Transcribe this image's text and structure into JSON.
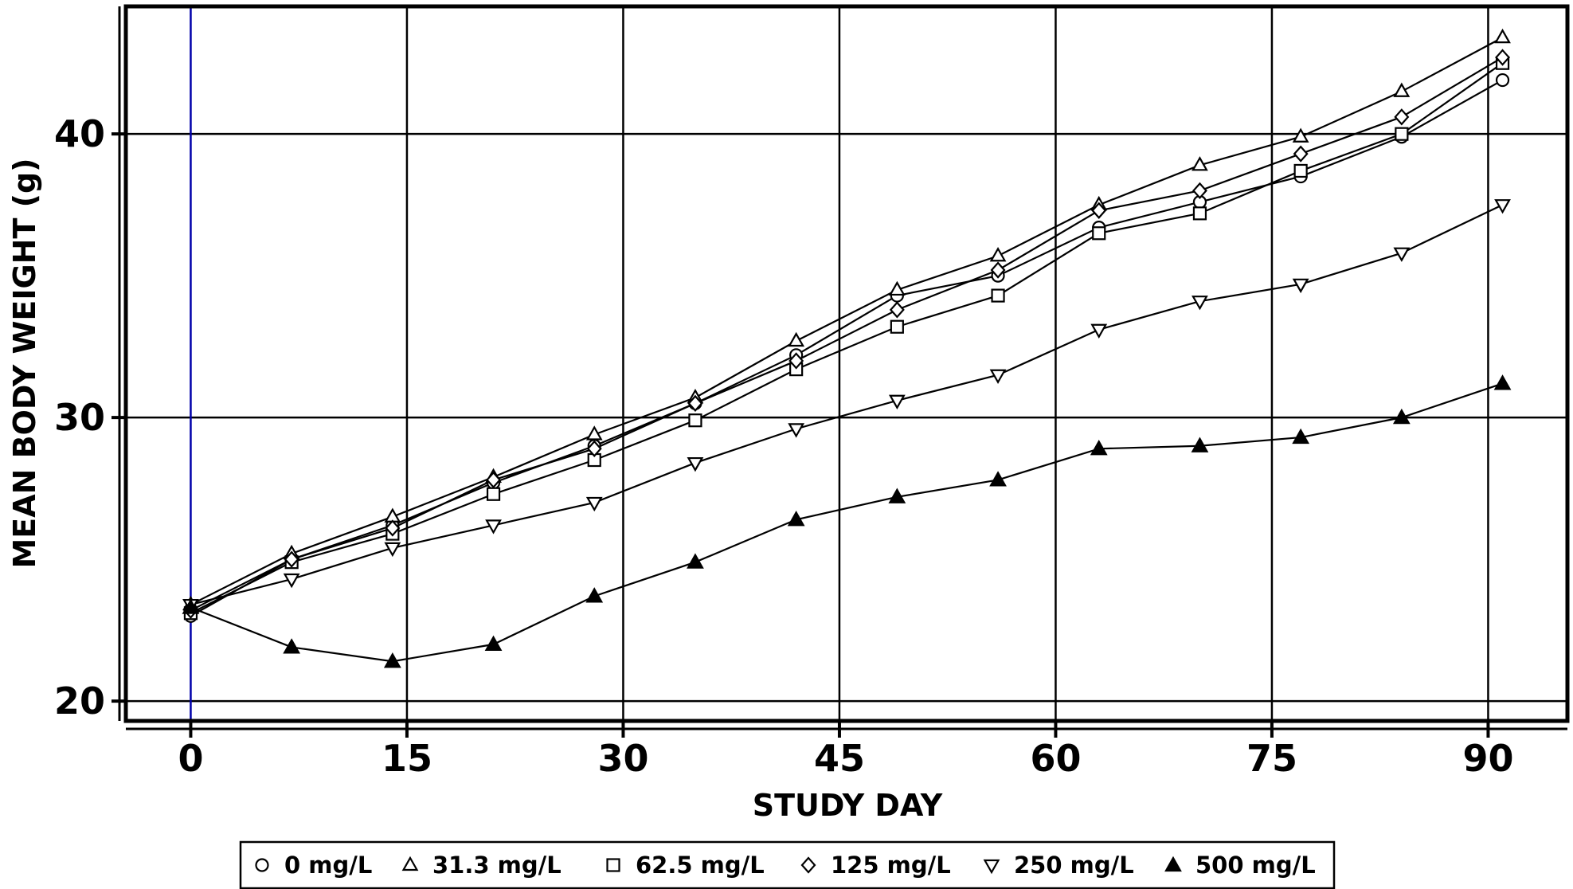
{
  "chart_data": {
    "type": "line",
    "title": "",
    "xlabel": "STUDY DAY",
    "ylabel": "MEAN BODY WEIGHT (g)",
    "xlim": [
      -4.5,
      95.5
    ],
    "ylim": [
      19.3,
      44.5
    ],
    "xticks": [
      0,
      15,
      30,
      45,
      60,
      75,
      90
    ],
    "yticks": [
      20,
      30,
      40
    ],
    "xtick_labels": [
      "0",
      "15",
      "30",
      "45",
      "60",
      "75",
      "90"
    ],
    "ytick_labels": [
      "20",
      "30",
      "40"
    ],
    "grid": true,
    "legend_position": "bottom",
    "x": [
      0,
      7,
      14,
      21,
      28,
      35,
      42,
      49,
      56,
      63,
      70,
      77,
      84,
      91
    ],
    "series": [
      {
        "name": "0 mg/L",
        "marker": "circle",
        "values": [
          23.0,
          25.0,
          26.2,
          27.7,
          29.0,
          30.5,
          32.2,
          34.3,
          35.0,
          36.7,
          37.6,
          38.5,
          39.9,
          41.9
        ]
      },
      {
        "name": "31.3 mg/L",
        "marker": "triangle-up-open",
        "values": [
          23.4,
          25.2,
          26.5,
          27.9,
          29.4,
          30.7,
          32.7,
          34.5,
          35.7,
          37.5,
          38.9,
          39.9,
          41.5,
          43.4
        ]
      },
      {
        "name": "62.5 mg/L",
        "marker": "square",
        "values": [
          23.1,
          24.9,
          25.9,
          27.3,
          28.5,
          29.9,
          31.7,
          33.2,
          34.3,
          36.5,
          37.2,
          38.7,
          40.0,
          42.5
        ]
      },
      {
        "name": "125 mg/L",
        "marker": "diamond",
        "values": [
          23.2,
          25.0,
          26.1,
          27.8,
          28.9,
          30.5,
          32.0,
          33.8,
          35.2,
          37.3,
          38.0,
          39.3,
          40.6,
          42.7
        ]
      },
      {
        "name": "250 mg/L",
        "marker": "triangle-down-open",
        "values": [
          23.4,
          24.3,
          25.4,
          26.2,
          27.0,
          28.4,
          29.6,
          30.6,
          31.5,
          33.1,
          34.1,
          34.7,
          35.8,
          37.5
        ]
      },
      {
        "name": "500 mg/L",
        "marker": "triangle-up-filled",
        "values": [
          23.3,
          21.9,
          21.4,
          22.0,
          23.7,
          24.9,
          26.4,
          27.2,
          27.8,
          28.9,
          29.0,
          29.3,
          30.0,
          31.2
        ]
      }
    ],
    "colors": {
      "line": "#000000",
      "grid": "#000000",
      "baseline": "#0000aa",
      "background": "#ffffff"
    }
  }
}
